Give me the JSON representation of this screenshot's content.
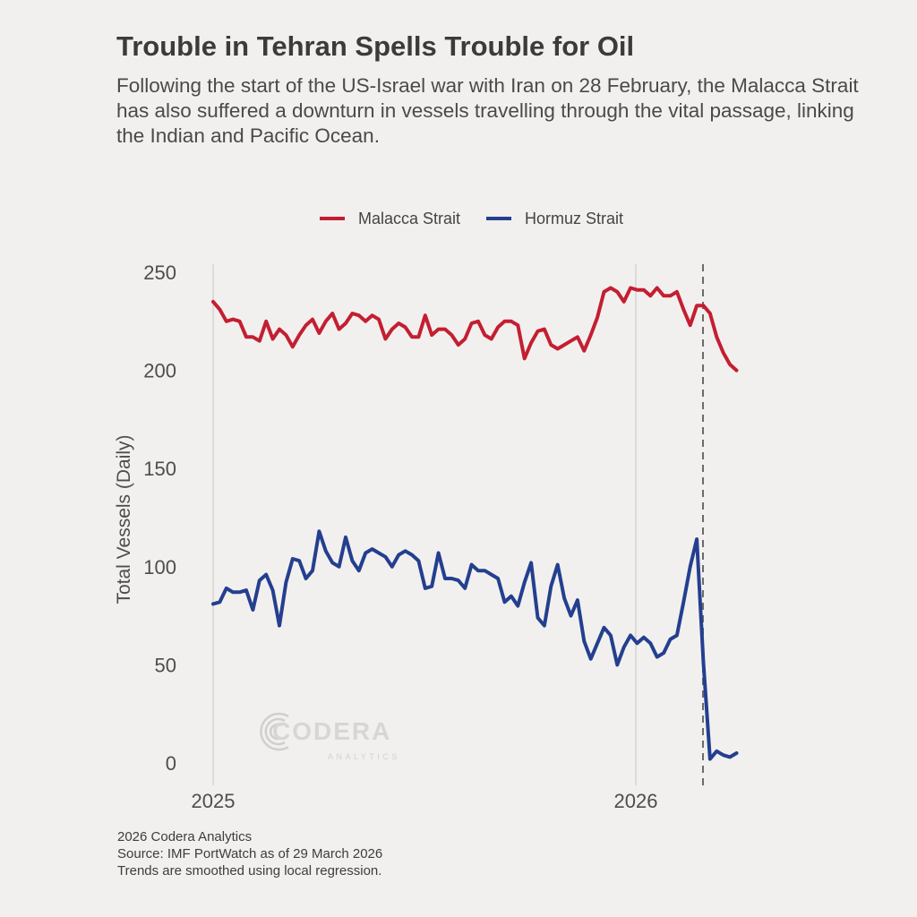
{
  "header": {
    "title": "Trouble in Tehran Spells Trouble for Oil",
    "subtitle": "Following the start of the US-Israel war with Iran on 28 February, the Malacca Strait has also suffered a downturn in vessels travelling through the vital passage, linking the Indian and Pacific Ocean."
  },
  "footer": {
    "line1": "2026 Codera Analytics",
    "line2": "Source: IMF PortWatch as of 29 March 2026",
    "line3": "Trends are smoothed using local regression."
  },
  "logo": {
    "text": "CODERA",
    "subtext": "ANALYTICS"
  },
  "chart_data": {
    "type": "line",
    "title": "",
    "xlabel": "",
    "ylabel": "Total Vessels (Daily)",
    "x_axis": {
      "type": "date",
      "first": "2025-01-01",
      "last": "2026-03-29",
      "spacing": "evenly spaced points",
      "ticks": [
        "2025",
        "2026"
      ],
      "tick_dates": [
        "2025-01-01",
        "2026-01-01"
      ]
    },
    "ylim": [
      0,
      250
    ],
    "yticks": [
      0,
      50,
      100,
      150,
      200,
      250
    ],
    "grid": "vertical lines at year ticks only",
    "legend": "top-center",
    "annotation": {
      "type": "vertical dashed line",
      "date": "2026-02-28",
      "color": "#6b6b6b"
    },
    "series": [
      {
        "name": "Malacca Strait",
        "color": "#c41e32",
        "values": [
          235,
          231,
          225,
          226,
          225,
          217,
          217,
          215,
          225,
          216,
          221,
          218,
          212,
          218,
          223,
          226,
          219,
          225,
          229,
          221,
          224,
          229,
          228,
          225,
          228,
          226,
          216,
          221,
          224,
          222,
          217,
          217,
          228,
          218,
          221,
          221,
          218,
          213,
          216,
          224,
          225,
          218,
          216,
          222,
          225,
          225,
          223,
          206,
          214,
          220,
          221,
          213,
          211,
          213,
          215,
          217,
          210,
          218,
          227,
          240,
          242,
          240,
          235,
          242,
          241,
          241,
          238,
          242,
          238,
          238,
          240,
          231,
          223,
          233,
          233,
          229,
          217,
          209,
          203,
          200
        ]
      },
      {
        "name": "Hormuz Strait",
        "color": "#243f8f",
        "values": [
          81,
          82,
          89,
          87,
          87,
          88,
          78,
          93,
          96,
          88,
          70,
          92,
          104,
          103,
          94,
          98,
          118,
          108,
          102,
          100,
          115,
          103,
          98,
          107,
          109,
          107,
          105,
          100,
          106,
          108,
          106,
          103,
          89,
          90,
          107,
          94,
          94,
          93,
          89,
          101,
          98,
          98,
          96,
          94,
          82,
          85,
          80,
          92,
          102,
          74,
          70,
          90,
          101,
          84,
          75,
          83,
          62,
          53,
          61,
          69,
          65,
          50,
          59,
          65,
          61,
          64,
          61,
          54,
          56,
          63,
          65,
          82,
          100,
          114,
          51,
          2,
          6,
          4,
          3,
          5
        ]
      }
    ]
  }
}
